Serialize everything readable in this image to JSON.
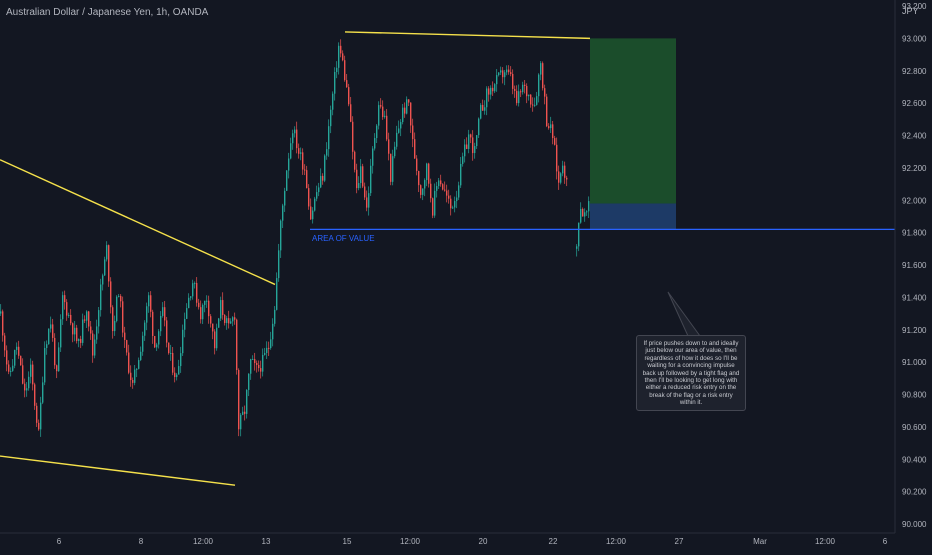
{
  "chart_data": {
    "type": "candlestick",
    "symbol_title": "Australian Dollar / Japanese Yen, 1h, OANDA",
    "currency_label": "JPY",
    "y_ticks": [
      "93.200",
      "93.000",
      "92.800",
      "92.600",
      "92.400",
      "92.200",
      "92.000",
      "91.800",
      "91.600",
      "91.400",
      "91.200",
      "91.000",
      "90.800",
      "90.600",
      "90.400",
      "90.200",
      "90.000"
    ],
    "y_range": [
      90.0,
      93.2
    ],
    "x_ticks": [
      "6",
      "8",
      "12:00",
      "13",
      "15",
      "12:00",
      "20",
      "22",
      "12:00",
      "27",
      "Mar",
      "12:00",
      "6"
    ],
    "price_path": [
      [
        0,
        91.3
      ],
      [
        8,
        90.9
      ],
      [
        16,
        91.1
      ],
      [
        24,
        90.8
      ],
      [
        30,
        90.95
      ],
      [
        38,
        90.55
      ],
      [
        44,
        91.1
      ],
      [
        50,
        91.25
      ],
      [
        56,
        90.9
      ],
      [
        62,
        91.4
      ],
      [
        70,
        91.25
      ],
      [
        78,
        91.1
      ],
      [
        86,
        91.35
      ],
      [
        92,
        91.05
      ],
      [
        100,
        91.45
      ],
      [
        106,
        91.7
      ],
      [
        112,
        91.2
      ],
      [
        118,
        91.45
      ],
      [
        124,
        91.1
      ],
      [
        132,
        90.85
      ],
      [
        140,
        91.1
      ],
      [
        148,
        91.4
      ],
      [
        154,
        91.1
      ],
      [
        162,
        91.3
      ],
      [
        168,
        91.05
      ],
      [
        176,
        90.9
      ],
      [
        184,
        91.3
      ],
      [
        192,
        91.5
      ],
      [
        200,
        91.3
      ],
      [
        206,
        91.4
      ],
      [
        214,
        91.1
      ],
      [
        220,
        91.35
      ],
      [
        228,
        91.2
      ],
      [
        234,
        91.3
      ],
      [
        238,
        90.6
      ],
      [
        244,
        90.7
      ],
      [
        250,
        91.0
      ],
      [
        256,
        90.95
      ],
      [
        262,
        91.0
      ],
      [
        268,
        91.1
      ],
      [
        274,
        91.35
      ],
      [
        280,
        91.85
      ],
      [
        286,
        92.2
      ],
      [
        292,
        92.45
      ],
      [
        298,
        92.3
      ],
      [
        304,
        92.2
      ],
      [
        310,
        91.9
      ],
      [
        316,
        92.05
      ],
      [
        322,
        92.15
      ],
      [
        328,
        92.45
      ],
      [
        334,
        92.75
      ],
      [
        338,
        92.95
      ],
      [
        342,
        92.85
      ],
      [
        348,
        92.6
      ],
      [
        352,
        92.3
      ],
      [
        356,
        92.05
      ],
      [
        360,
        92.2
      ],
      [
        366,
        91.95
      ],
      [
        372,
        92.3
      ],
      [
        378,
        92.6
      ],
      [
        384,
        92.5
      ],
      [
        390,
        92.15
      ],
      [
        396,
        92.4
      ],
      [
        402,
        92.55
      ],
      [
        408,
        92.6
      ],
      [
        412,
        92.35
      ],
      [
        416,
        92.2
      ],
      [
        420,
        92.05
      ],
      [
        426,
        92.2
      ],
      [
        432,
        91.95
      ],
      [
        438,
        92.15
      ],
      [
        444,
        92.05
      ],
      [
        450,
        91.95
      ],
      [
        456,
        92.05
      ],
      [
        462,
        92.25
      ],
      [
        468,
        92.4
      ],
      [
        474,
        92.3
      ],
      [
        480,
        92.55
      ],
      [
        486,
        92.65
      ],
      [
        492,
        92.7
      ],
      [
        498,
        92.75
      ],
      [
        504,
        92.8
      ],
      [
        510,
        92.75
      ],
      [
        516,
        92.6
      ],
      [
        522,
        92.7
      ],
      [
        528,
        92.65
      ],
      [
        534,
        92.6
      ],
      [
        540,
        92.85
      ],
      [
        546,
        92.5
      ],
      [
        552,
        92.4
      ],
      [
        558,
        92.1
      ],
      [
        562,
        92.25
      ],
      [
        566,
        92.1
      ]
    ],
    "price_path_2": [
      [
        576,
        91.7
      ],
      [
        578,
        91.9
      ],
      [
        580,
        91.95
      ],
      [
        584,
        91.9
      ],
      [
        588,
        91.95
      ]
    ],
    "annotations": {
      "area_of_value_label": "AREA OF VALUE",
      "area_of_value_price": 91.82,
      "note": "If price pushes down to and ideally just below our area of value, then regardless of how it does so I'll be waiting for a convincing impulse back up followed by a tight flag and then I'll be looking to get long with either a reduced risk entry on the break of the flag or a risk entry within it."
    },
    "trendlines": [
      {
        "name": "upper-resistance",
        "from": [
          345,
          93.04
        ],
        "to": [
          590,
          93.0
        ]
      },
      {
        "name": "falling-upper",
        "from": [
          0,
          92.25
        ],
        "to": [
          275,
          91.48
        ]
      },
      {
        "name": "falling-lower",
        "from": [
          0,
          90.42
        ],
        "to": [
          235,
          90.24
        ]
      }
    ],
    "position": {
      "type": "long",
      "target": 93.0,
      "entry": 91.98,
      "stop": 91.82,
      "x_range": [
        590,
        676
      ],
      "target_color": "#1b4d2b",
      "stop_color": "#1d3a66"
    },
    "colors": {
      "background": "#131722",
      "up": "#26a69a",
      "down": "#ef5350",
      "trendline": "#f5e14b",
      "area_line": "#2962ff",
      "axis_text": "#b2b5be"
    }
  }
}
